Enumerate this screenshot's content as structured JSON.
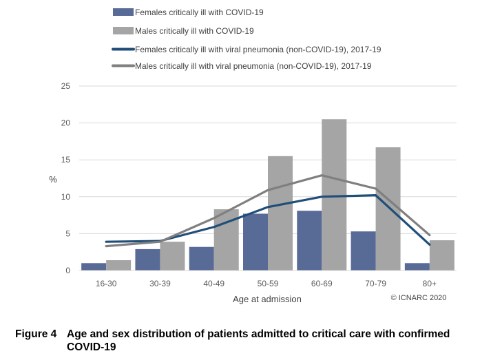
{
  "chart_data": {
    "type": "bar",
    "categories": [
      "16-30",
      "30-39",
      "40-49",
      "50-59",
      "60-69",
      "70-79",
      "80+"
    ],
    "series": [
      {
        "name": "Females critically ill with COVID-19",
        "kind": "bar",
        "color": "#586A96",
        "values": [
          1.0,
          2.9,
          3.2,
          7.7,
          8.1,
          5.3,
          1.0
        ]
      },
      {
        "name": "Males critically ill with COVID-19",
        "kind": "bar",
        "color": "#A5A5A5",
        "values": [
          1.4,
          3.9,
          8.3,
          15.5,
          20.5,
          16.7,
          4.1
        ]
      },
      {
        "name": "Females critically ill with viral pneumonia (non-COVID-19), 2017-19",
        "kind": "line",
        "color": "#1F4E79",
        "values": [
          3.9,
          4.0,
          5.9,
          8.6,
          10.0,
          10.2,
          3.5
        ]
      },
      {
        "name": "Males critically ill with viral pneumonia (non-COVID-19), 2017-19",
        "kind": "line",
        "color": "#7F7F7F",
        "values": [
          3.3,
          3.9,
          7.1,
          10.9,
          12.9,
          11.1,
          4.8
        ]
      }
    ],
    "xlabel": "Age at admission",
    "ylabel": "%",
    "ylim": [
      0,
      25
    ],
    "yticks": [
      0,
      5,
      10,
      15,
      20,
      25
    ],
    "grid": true,
    "legend_position": "top-left",
    "credit": "© ICNARC 2020"
  },
  "caption": {
    "number": "Figure 4",
    "text": "Age and sex distribution of patients admitted to critical care with confirmed COVID-19"
  }
}
